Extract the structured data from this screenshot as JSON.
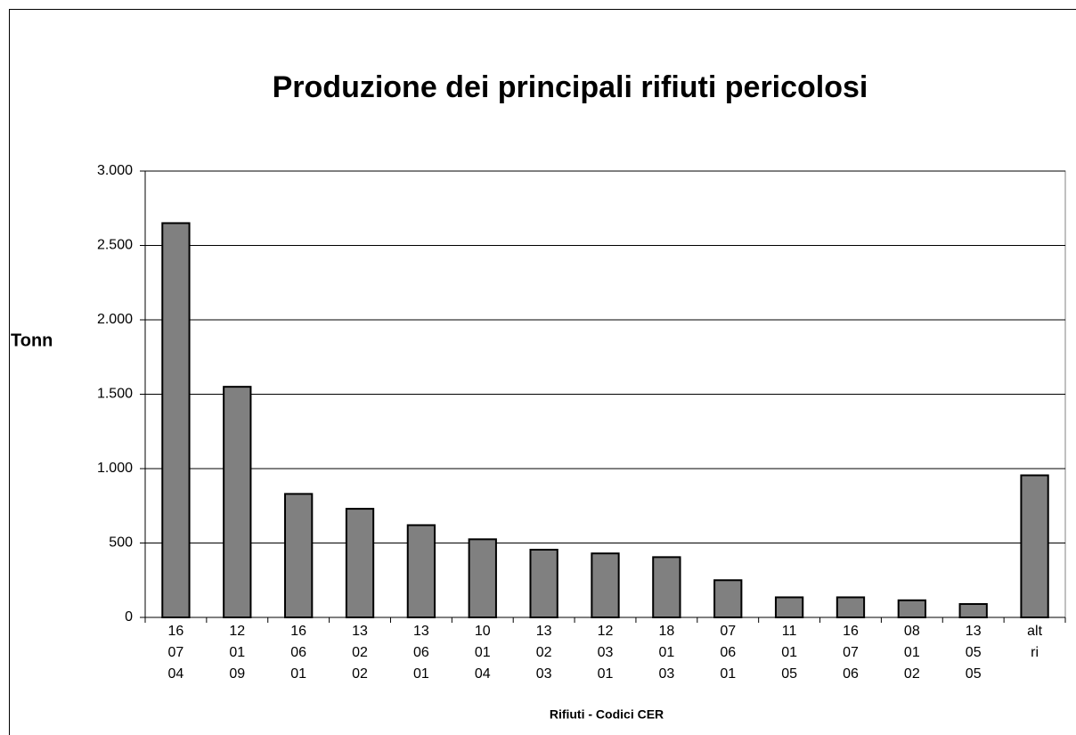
{
  "chart_data": {
    "type": "bar",
    "title": "Produzione dei principali rifiuti pericolosi",
    "y_label": "Tonn",
    "x_label": "Rifiuti - Codici CER",
    "categories": [
      [
        "16",
        "07",
        "04"
      ],
      [
        "12",
        "01",
        "09"
      ],
      [
        "16",
        "06",
        "01"
      ],
      [
        "13",
        "02",
        "02"
      ],
      [
        "13",
        "06",
        "01"
      ],
      [
        "10",
        "01",
        "04"
      ],
      [
        "13",
        "02",
        "03"
      ],
      [
        "12",
        "03",
        "01"
      ],
      [
        "18",
        "01",
        "03"
      ],
      [
        "07",
        "06",
        "01"
      ],
      [
        "11",
        "01",
        "05"
      ],
      [
        "16",
        "07",
        "06"
      ],
      [
        "08",
        "01",
        "02"
      ],
      [
        "13",
        "05",
        "05"
      ],
      [
        "alt",
        "ri"
      ]
    ],
    "values": [
      2650,
      1550,
      830,
      730,
      620,
      525,
      455,
      430,
      405,
      250,
      135,
      135,
      115,
      90,
      955
    ],
    "color": "#808080",
    "ylim": [
      0,
      3000
    ],
    "yticks": [
      0,
      500,
      {
        "value": 1000,
        "label": "1.000"
      },
      {
        "value": 1500,
        "label": "1.500"
      },
      {
        "value": 2000,
        "label": "2.000"
      },
      {
        "value": 2500,
        "label": "2.500"
      },
      {
        "value": 3000,
        "label": "3.000"
      }
    ],
    "grid": true
  }
}
